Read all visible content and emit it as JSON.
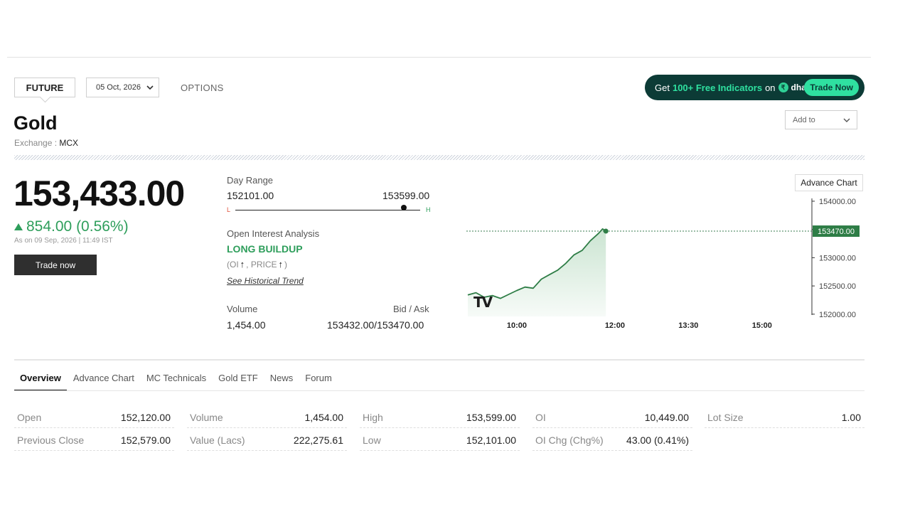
{
  "header": {
    "future_label": "FUTURE",
    "expiry_selected": "05 Oct, 2026",
    "options_label": "OPTIONS",
    "promo": {
      "prefix": "Get",
      "highlight": "100+ Free Indicators",
      "on": "on",
      "brand": "dhan",
      "brand_mark": "₹",
      "cta": "Trade Now"
    },
    "add_to_label": "Add to"
  },
  "instrument": {
    "name": "Gold",
    "exchange_label": "Exchange :",
    "exchange": "MCX",
    "price": "153,433.00",
    "change": "854.00 (0.56%)",
    "as_of": "As on 09 Sep, 2026 | 11:49 IST",
    "trade_button": "Trade now"
  },
  "day_range": {
    "label": "Day Range",
    "low": "152101.00",
    "high": "153599.00",
    "low_marker": "L",
    "high_marker": "H",
    "position_fraction": 0.91
  },
  "open_interest": {
    "label": "Open Interest Analysis",
    "signal": "LONG BUILDUP",
    "detail_prefix": "(OI",
    "detail_mid": ", PRICE",
    "detail_suffix": ")",
    "link": "See Historical Trend"
  },
  "volume": {
    "label": "Volume",
    "value": "1,454.00"
  },
  "bid_ask": {
    "label": "Bid / Ask",
    "value": "153432.00/153470.00"
  },
  "chart": {
    "advance_button": "Advance Chart",
    "last_price_tag": "153470.00",
    "watermark": "TV",
    "colors": {
      "line": "#2e7d46",
      "fill": "#c8e3cf",
      "tag": "#2e7d46"
    }
  },
  "chart_data": {
    "type": "area",
    "y_ticks": [
      "154000.00",
      "153500.00",
      "153000.00",
      "152500.00",
      "152000.00"
    ],
    "x_ticks": [
      "10:00",
      "12:00",
      "13:30",
      "15:00"
    ],
    "x": [
      "09:00",
      "09:10",
      "09:20",
      "09:30",
      "09:40",
      "09:50",
      "10:00",
      "10:10",
      "10:20",
      "10:30",
      "10:40",
      "10:50",
      "11:00",
      "11:10",
      "11:20",
      "11:30",
      "11:40",
      "11:45",
      "11:49"
    ],
    "values": [
      152340,
      152380,
      152300,
      152330,
      152280,
      152350,
      152420,
      152480,
      152460,
      152620,
      152700,
      152780,
      152900,
      153050,
      153130,
      153300,
      153430,
      153510,
      153470
    ],
    "ylim": [
      151960,
      154100
    ]
  },
  "tabs": [
    "Overview",
    "Advance Chart",
    "MC Technicals",
    "Gold ETF",
    "News",
    "Forum"
  ],
  "overview": [
    [
      {
        "k": "Open",
        "v": "152,120.00"
      },
      {
        "k": "Previous Close",
        "v": "152,579.00"
      }
    ],
    [
      {
        "k": "Volume",
        "v": "1,454.00"
      },
      {
        "k": "Value (Lacs)",
        "v": "222,275.61"
      }
    ],
    [
      {
        "k": "High",
        "v": "153,599.00"
      },
      {
        "k": "Low",
        "v": "152,101.00"
      }
    ],
    [
      {
        "k": "OI",
        "v": "10,449.00"
      },
      {
        "k": "OI Chg (Chg%)",
        "v": "43.00 (0.41%)"
      }
    ],
    [
      {
        "k": "Lot Size",
        "v": "1.00"
      }
    ]
  ]
}
